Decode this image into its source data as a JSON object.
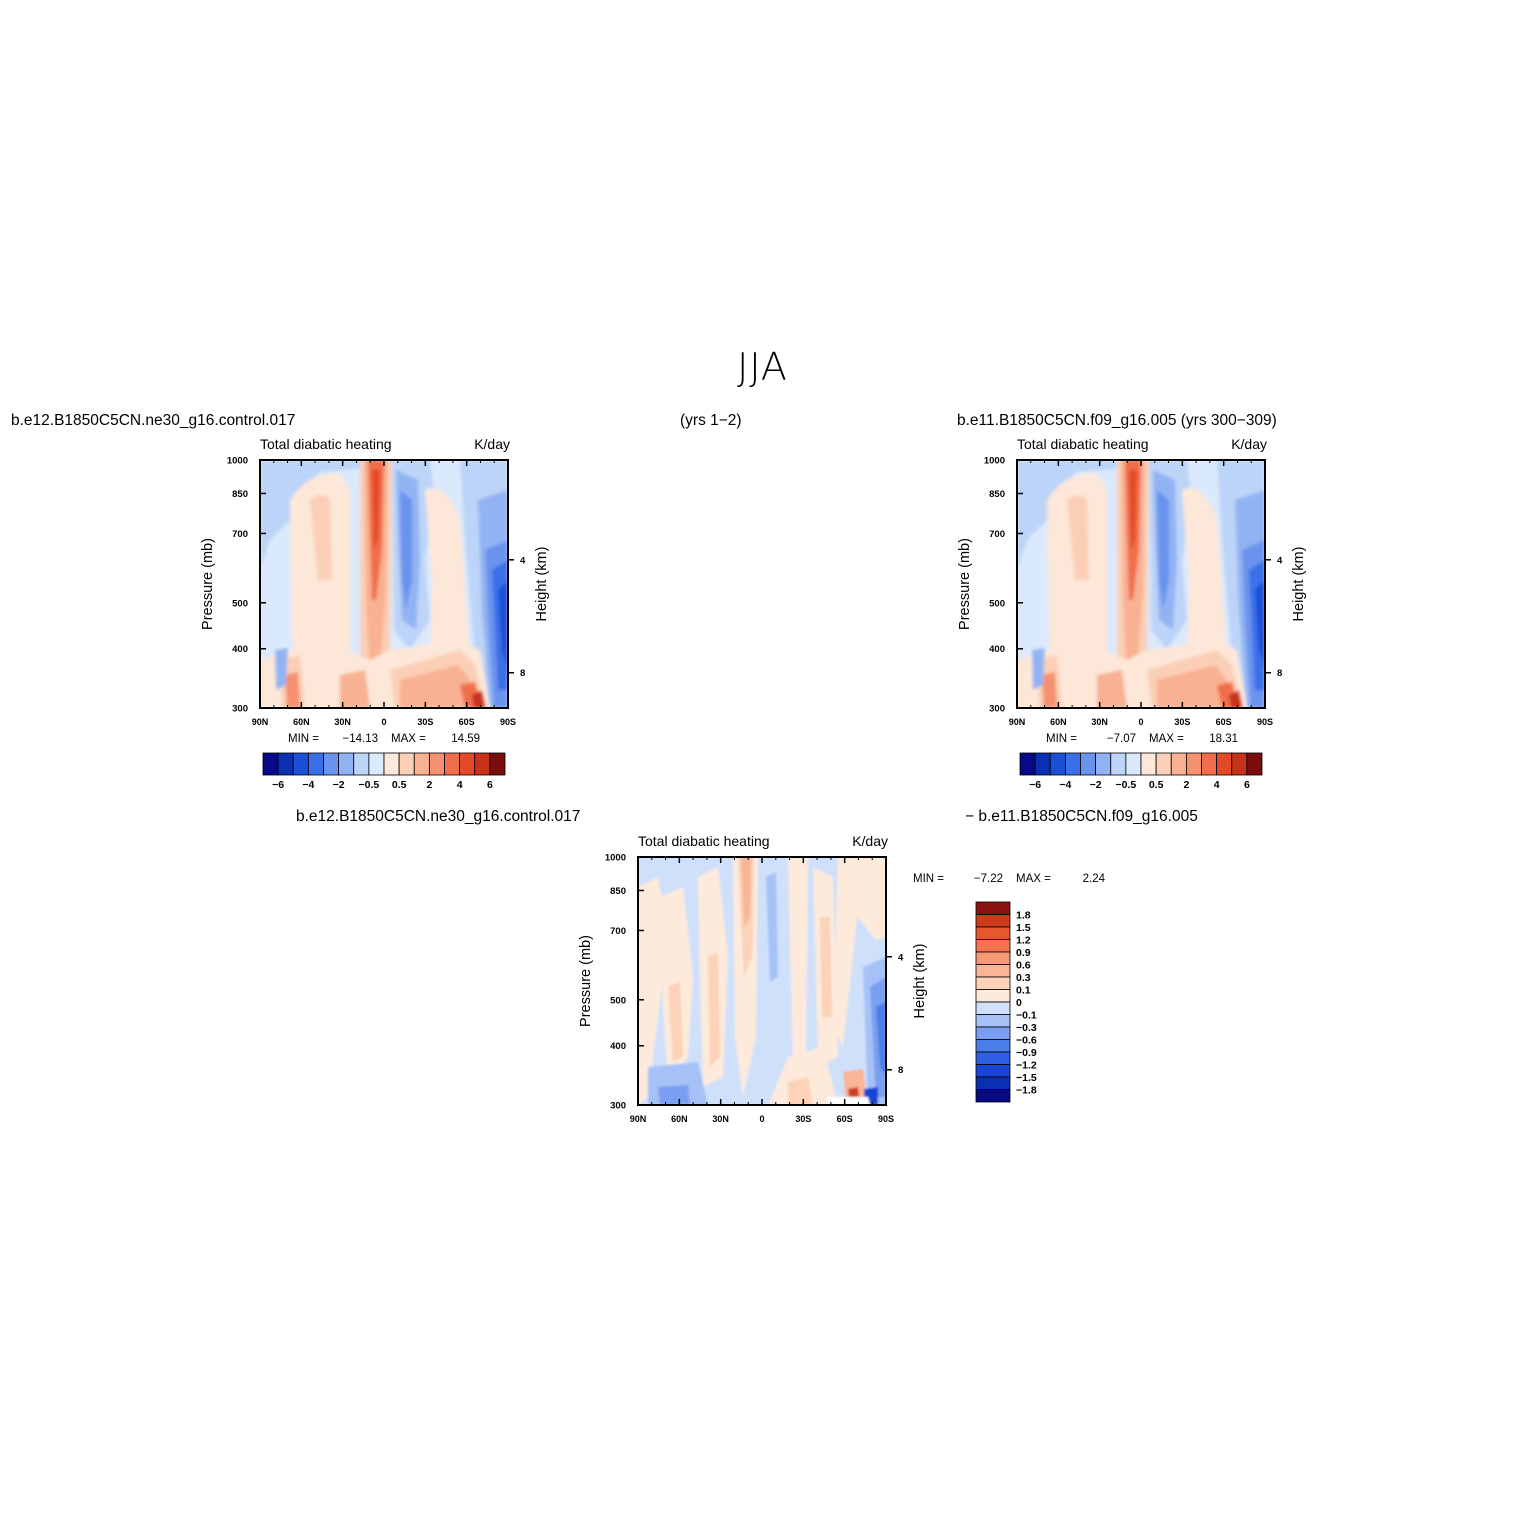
{
  "page": {
    "title": "JJA",
    "case1": "b.e12.B1850C5CN.ne30_g16.control.017",
    "case1_years": "(yrs 1−2)",
    "case2": "b.e11.B1850C5CN.f09_g16.005 (yrs 300−309)",
    "diff_case1": "b.e12.B1850C5CN.ne30_g16.control.017",
    "diff_case2": "− b.e11.B1850C5CN.f09_g16.005"
  },
  "colors": {
    "abs_levels": [
      "#08088a",
      "#0b2fb2",
      "#1a4fd8",
      "#3a6fe8",
      "#6a93ee",
      "#92b3f3",
      "#bcd4f8",
      "#dbe9fc",
      "#fde7d8",
      "#fbcfb6",
      "#f8b192",
      "#f59070",
      "#f06e4c",
      "#e44a27",
      "#c8321a",
      "#7c0d0d"
    ],
    "diff_levels": [
      "#08088a",
      "#0b2fb2",
      "#1845d4",
      "#2f60e4",
      "#4c7ee9",
      "#7a9ff0",
      "#a5c1f6",
      "#cfe0fb",
      "#fdeadb",
      "#fcd2b8",
      "#f9b596",
      "#f79775",
      "#f2754f",
      "#e8562f",
      "#d03a1c",
      "#8c1111"
    ]
  },
  "chart_data": [
    {
      "type": "heatmap",
      "title": "Total diabatic heating",
      "units": "K/day",
      "ylabel": "Pressure (mb)",
      "ylabel_right": "Height (km)",
      "x_ticks": [
        "90N",
        "60N",
        "30N",
        "0",
        "30S",
        "60S",
        "90S"
      ],
      "y_ticks": [
        "300",
        "400",
        "500",
        "700",
        "850",
        "1000"
      ],
      "y_right_ticks": [
        "8",
        "4"
      ],
      "min_label": "MIN =",
      "min_value": "−14.13",
      "max_label": "MAX =",
      "max_value": "14.59",
      "colorbar_labels": [
        "−6",
        "−4",
        "−2",
        "−0.5",
        "0.5",
        "2",
        "4",
        "6"
      ],
      "ylim": [
        1000,
        300
      ],
      "xlim": [
        90,
        -90
      ]
    },
    {
      "type": "heatmap",
      "title": "Total diabatic heating",
      "units": "K/day",
      "ylabel": "Pressure (mb)",
      "ylabel_right": "Height (km)",
      "x_ticks": [
        "90N",
        "60N",
        "30N",
        "0",
        "30S",
        "60S",
        "90S"
      ],
      "y_ticks": [
        "300",
        "400",
        "500",
        "700",
        "850",
        "1000"
      ],
      "y_right_ticks": [
        "8",
        "4"
      ],
      "min_label": "MIN =",
      "min_value": "−7.07",
      "max_label": "MAX =",
      "max_value": "18.31",
      "colorbar_labels": [
        "−6",
        "−4",
        "−2",
        "−0.5",
        "0.5",
        "2",
        "4",
        "6"
      ],
      "ylim": [
        1000,
        300
      ],
      "xlim": [
        90,
        -90
      ]
    },
    {
      "type": "heatmap",
      "title": "Total diabatic heating",
      "units": "K/day",
      "ylabel": "Pressure (mb)",
      "ylabel_right": "Height (km)",
      "x_ticks": [
        "90N",
        "60N",
        "30N",
        "0",
        "30S",
        "60S",
        "90S"
      ],
      "y_ticks": [
        "300",
        "400",
        "500",
        "700",
        "850",
        "1000"
      ],
      "y_right_ticks": [
        "8",
        "4"
      ],
      "min_label": "MIN =",
      "min_value": "−7.22",
      "max_label": "MAX =",
      "max_value": "2.24",
      "colorbar_labels": [
        "1.8",
        "1.5",
        "1.2",
        "0.9",
        "0.6",
        "0.3",
        "0.1",
        "0",
        "−0.1",
        "−0.3",
        "−0.6",
        "−0.9",
        "−1.2",
        "−1.5",
        "−1.8"
      ],
      "ylim": [
        1000,
        300
      ],
      "xlim": [
        90,
        -90
      ]
    }
  ]
}
